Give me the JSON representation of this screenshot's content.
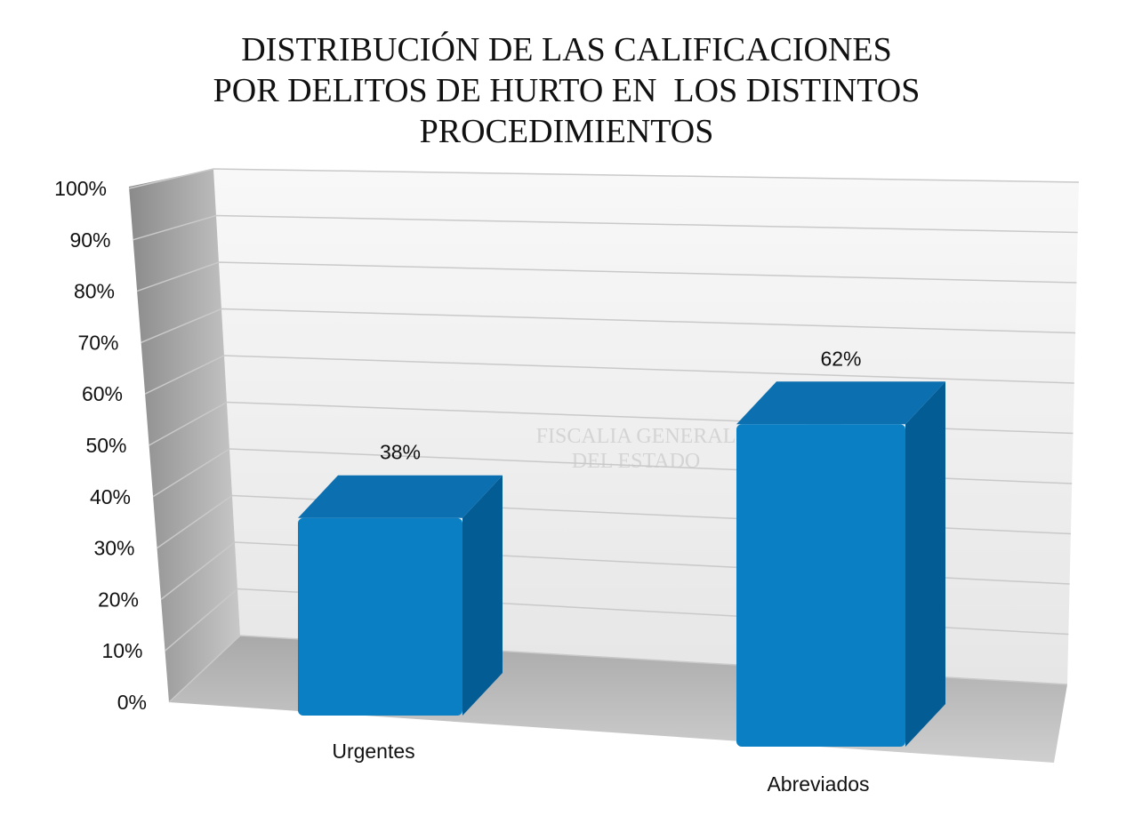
{
  "chart_data": {
    "type": "bar3d",
    "title": [
      "DISTRIBUCIÓN DE LAS CALIFICACIONES",
      "POR DELITOS DE HURTO EN  LOS DISTINTOS",
      "PROCEDIMIENTOS"
    ],
    "watermark": [
      "FISCALIA GENERAL",
      "DEL ESTADO"
    ],
    "categories": [
      "Urgentes",
      "Abreviados"
    ],
    "values": [
      38,
      62
    ],
    "value_labels": [
      "38%",
      "62%"
    ],
    "color": "#0a7fc4",
    "ylim": [
      0,
      100
    ],
    "yticks": [
      {
        "value": 0,
        "label": "0%"
      },
      {
        "value": 10,
        "label": "10%"
      },
      {
        "value": 20,
        "label": "20%"
      },
      {
        "value": 30,
        "label": "30%"
      },
      {
        "value": 40,
        "label": "40%"
      },
      {
        "value": 50,
        "label": "50%"
      },
      {
        "value": 60,
        "label": "60%"
      },
      {
        "value": 70,
        "label": "70%"
      },
      {
        "value": 80,
        "label": "80%"
      },
      {
        "value": 90,
        "label": "90%"
      },
      {
        "value": 100,
        "label": "100%"
      }
    ],
    "grid": true
  }
}
